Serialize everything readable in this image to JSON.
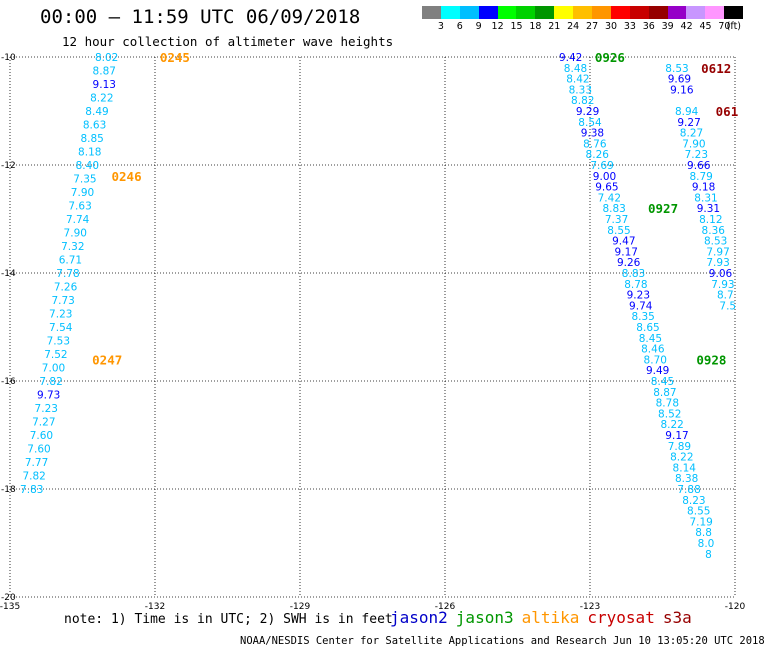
{
  "title": "00:00 – 11:59 UTC 06/09/2018",
  "subtitle": "12 hour collection of altimeter wave heights",
  "colorbar": {
    "colors": [
      "#808080",
      "#00ffff",
      "#00bfff",
      "#0000ff",
      "#00ff00",
      "#00d200",
      "#009600",
      "#ffff00",
      "#ffbf00",
      "#ff9600",
      "#ff0000",
      "#c80000",
      "#960000",
      "#9600c8",
      "#c896ff",
      "#ff96ff",
      "#000000"
    ],
    "labels": [
      "3",
      "6",
      "9",
      "12",
      "15",
      "18",
      "21",
      "24",
      "27",
      "30",
      "33",
      "36",
      "39",
      "42",
      "45",
      "70",
      "(ft)"
    ]
  },
  "note": "note: 1) Time is in UTC; 2) SWH is in feet",
  "satellites": [
    {
      "name": "jason2",
      "color": "#0000c8"
    },
    {
      "name": "jason3",
      "color": "#009600"
    },
    {
      "name": "altika",
      "color": "#ff9600"
    },
    {
      "name": "cryosat",
      "color": "#c80000"
    },
    {
      "name": "s3a",
      "color": "#960000"
    }
  ],
  "credit": "NOAA/NESDIS Center for Satellite Applications and Research   Jun 10 13:05:20 UTC 2018",
  "chart_data": {
    "type": "scatter",
    "xlabel": "",
    "ylabel": "",
    "xlim": [
      -135,
      -120
    ],
    "ylim": [
      -20,
      -10
    ],
    "xticks": [
      "-135",
      "-132",
      "-129",
      "-126",
      "-123",
      "-120"
    ],
    "yticks": [
      "-10",
      "-12",
      "-14",
      "-16",
      "-18",
      "-20"
    ],
    "grid": true,
    "time_labels": [
      {
        "text": "0245",
        "lon": -131.9,
        "lat": -10.0,
        "color": "#ff9600"
      },
      {
        "text": "0246",
        "lon": -132.9,
        "lat": -12.2,
        "color": "#ff9600"
      },
      {
        "text": "0247",
        "lon": -133.3,
        "lat": -15.6,
        "color": "#ff9600"
      },
      {
        "text": "0926",
        "lon": -122.9,
        "lat": -10.0,
        "color": "#009600"
      },
      {
        "text": "0927",
        "lon": -121.8,
        "lat": -12.8,
        "color": "#009600"
      },
      {
        "text": "0928",
        "lon": -120.8,
        "lat": -15.6,
        "color": "#009600"
      },
      {
        "text": "0612",
        "lon": -120.7,
        "lat": -10.2,
        "color": "#960000"
      },
      {
        "text": "061",
        "lon": -120.4,
        "lat": -11.0,
        "color": "#960000"
      }
    ],
    "series": [
      {
        "name": "altika",
        "points": [
          {
            "lon": -133.0,
            "lat": -10.0,
            "swh": "8.02",
            "color": "#00bfff"
          },
          {
            "lon": -133.05,
            "lat": -10.25,
            "swh": "8.87",
            "color": "#00bfff"
          },
          {
            "lon": -133.05,
            "lat": -10.5,
            "swh": "9.13",
            "color": "#0000ff"
          },
          {
            "lon": -133.1,
            "lat": -10.75,
            "swh": "8.22",
            "color": "#00bfff"
          },
          {
            "lon": -133.2,
            "lat": -11.0,
            "swh": "8.49",
            "color": "#00bfff"
          },
          {
            "lon": -133.25,
            "lat": -11.25,
            "swh": "8.63",
            "color": "#00bfff"
          },
          {
            "lon": -133.3,
            "lat": -11.5,
            "swh": "8.85",
            "color": "#00bfff"
          },
          {
            "lon": -133.35,
            "lat": -11.75,
            "swh": "8.18",
            "color": "#00bfff"
          },
          {
            "lon": -133.4,
            "lat": -12.0,
            "swh": "8.40",
            "color": "#00bfff"
          },
          {
            "lon": -133.45,
            "lat": -12.25,
            "swh": "7.35",
            "color": "#00bfff"
          },
          {
            "lon": -133.5,
            "lat": -12.5,
            "swh": "7.90",
            "color": "#00bfff"
          },
          {
            "lon": -133.55,
            "lat": -12.75,
            "swh": "7.63",
            "color": "#00bfff"
          },
          {
            "lon": -133.6,
            "lat": -13.0,
            "swh": "7.74",
            "color": "#00bfff"
          },
          {
            "lon": -133.65,
            "lat": -13.25,
            "swh": "7.90",
            "color": "#00bfff"
          },
          {
            "lon": -133.7,
            "lat": -13.5,
            "swh": "7.32",
            "color": "#00bfff"
          },
          {
            "lon": -133.75,
            "lat": -13.75,
            "swh": "6.71",
            "color": "#00bfff"
          },
          {
            "lon": -133.8,
            "lat": -14.0,
            "swh": "7.78",
            "color": "#00bfff"
          },
          {
            "lon": -133.85,
            "lat": -14.25,
            "swh": "7.26",
            "color": "#00bfff"
          },
          {
            "lon": -133.9,
            "lat": -14.5,
            "swh": "7.73",
            "color": "#00bfff"
          },
          {
            "lon": -133.95,
            "lat": -14.75,
            "swh": "7.23",
            "color": "#00bfff"
          },
          {
            "lon": -133.95,
            "lat": -15.0,
            "swh": "7.54",
            "color": "#00bfff"
          },
          {
            "lon": -134.0,
            "lat": -15.25,
            "swh": "7.53",
            "color": "#00bfff"
          },
          {
            "lon": -134.05,
            "lat": -15.5,
            "swh": "7.52",
            "color": "#00bfff"
          },
          {
            "lon": -134.1,
            "lat": -15.75,
            "swh": "7.00",
            "color": "#00bfff"
          },
          {
            "lon": -134.15,
            "lat": -16.0,
            "swh": "7.82",
            "color": "#00bfff"
          },
          {
            "lon": -134.2,
            "lat": -16.25,
            "swh": "9.73",
            "color": "#0000ff"
          },
          {
            "lon": -134.25,
            "lat": -16.5,
            "swh": "7.23",
            "color": "#00bfff"
          },
          {
            "lon": -134.3,
            "lat": -16.75,
            "swh": "7.27",
            "color": "#00bfff"
          },
          {
            "lon": -134.35,
            "lat": -17.0,
            "swh": "7.60",
            "color": "#00bfff"
          },
          {
            "lon": -134.4,
            "lat": -17.25,
            "swh": "7.60",
            "color": "#00bfff"
          },
          {
            "lon": -134.45,
            "lat": -17.5,
            "swh": "7.77",
            "color": "#00bfff"
          },
          {
            "lon": -134.5,
            "lat": -17.75,
            "swh": "7.82",
            "color": "#00bfff"
          },
          {
            "lon": -134.55,
            "lat": -18.0,
            "swh": "7.83",
            "color": "#00bfff"
          }
        ]
      },
      {
        "name": "jason3",
        "points": [
          {
            "lon": -123.4,
            "lat": -10.0,
            "swh": "9.42",
            "color": "#0000ff"
          },
          {
            "lon": -123.3,
            "lat": -10.2,
            "swh": "8.48",
            "color": "#00bfff"
          },
          {
            "lon": -123.25,
            "lat": -10.4,
            "swh": "8.42",
            "color": "#00bfff"
          },
          {
            "lon": -123.2,
            "lat": -10.6,
            "swh": "8.33",
            "color": "#00bfff"
          },
          {
            "lon": -123.15,
            "lat": -10.8,
            "swh": "8.82",
            "color": "#00bfff"
          },
          {
            "lon": -123.05,
            "lat": -11.0,
            "swh": "9.29",
            "color": "#0000ff"
          },
          {
            "lon": -123.0,
            "lat": -11.2,
            "swh": "8.54",
            "color": "#00bfff"
          },
          {
            "lon": -122.95,
            "lat": -11.4,
            "swh": "9.38",
            "color": "#0000ff"
          },
          {
            "lon": -122.9,
            "lat": -11.6,
            "swh": "8.76",
            "color": "#00bfff"
          },
          {
            "lon": -122.85,
            "lat": -11.8,
            "swh": "8.26",
            "color": "#00bfff"
          },
          {
            "lon": -122.75,
            "lat": -12.0,
            "swh": "7.69",
            "color": "#00bfff"
          },
          {
            "lon": -122.7,
            "lat": -12.2,
            "swh": "9.00",
            "color": "#0000ff"
          },
          {
            "lon": -122.65,
            "lat": -12.4,
            "swh": "9.65",
            "color": "#0000ff"
          },
          {
            "lon": -122.6,
            "lat": -12.6,
            "swh": "7.42",
            "color": "#00bfff"
          },
          {
            "lon": -122.5,
            "lat": -12.8,
            "swh": "8.83",
            "color": "#00bfff"
          },
          {
            "lon": -122.45,
            "lat": -13.0,
            "swh": "7.37",
            "color": "#00bfff"
          },
          {
            "lon": -122.4,
            "lat": -13.2,
            "swh": "8.55",
            "color": "#00bfff"
          },
          {
            "lon": -122.3,
            "lat": -13.4,
            "swh": "9.47",
            "color": "#0000ff"
          },
          {
            "lon": -122.25,
            "lat": -13.6,
            "swh": "9.17",
            "color": "#0000ff"
          },
          {
            "lon": -122.2,
            "lat": -13.8,
            "swh": "9.26",
            "color": "#0000ff"
          },
          {
            "lon": -122.1,
            "lat": -14.0,
            "swh": "8.83",
            "color": "#00bfff"
          },
          {
            "lon": -122.05,
            "lat": -14.2,
            "swh": "8.78",
            "color": "#00bfff"
          },
          {
            "lon": -122.0,
            "lat": -14.4,
            "swh": "9.23",
            "color": "#0000ff"
          },
          {
            "lon": -121.95,
            "lat": -14.6,
            "swh": "9.74",
            "color": "#0000ff"
          },
          {
            "lon": -121.9,
            "lat": -14.8,
            "swh": "8.35",
            "color": "#00bfff"
          },
          {
            "lon": -121.8,
            "lat": -15.0,
            "swh": "8.65",
            "color": "#00bfff"
          },
          {
            "lon": -121.75,
            "lat": -15.2,
            "swh": "8.45",
            "color": "#00bfff"
          },
          {
            "lon": -121.7,
            "lat": -15.4,
            "swh": "8.46",
            "color": "#00bfff"
          },
          {
            "lon": -121.65,
            "lat": -15.6,
            "swh": "8.70",
            "color": "#00bfff"
          },
          {
            "lon": -121.6,
            "lat": -15.8,
            "swh": "9.49",
            "color": "#0000ff"
          },
          {
            "lon": -121.5,
            "lat": -16.0,
            "swh": "8.45",
            "color": "#00bfff"
          },
          {
            "lon": -121.45,
            "lat": -16.2,
            "swh": "8.87",
            "color": "#00bfff"
          },
          {
            "lon": -121.4,
            "lat": -16.4,
            "swh": "8.78",
            "color": "#00bfff"
          },
          {
            "lon": -121.35,
            "lat": -16.6,
            "swh": "8.52",
            "color": "#00bfff"
          },
          {
            "lon": -121.3,
            "lat": -16.8,
            "swh": "8.22",
            "color": "#00bfff"
          },
          {
            "lon": -121.2,
            "lat": -17.0,
            "swh": "9.17",
            "color": "#0000ff"
          },
          {
            "lon": -121.15,
            "lat": -17.2,
            "swh": "7.89",
            "color": "#00bfff"
          },
          {
            "lon": -121.1,
            "lat": -17.4,
            "swh": "8.22",
            "color": "#00bfff"
          },
          {
            "lon": -121.05,
            "lat": -17.6,
            "swh": "8.14",
            "color": "#00bfff"
          },
          {
            "lon": -121.0,
            "lat": -17.8,
            "swh": "8.38",
            "color": "#00bfff"
          },
          {
            "lon": -120.95,
            "lat": -18.0,
            "swh": "7.88",
            "color": "#00bfff"
          },
          {
            "lon": -120.85,
            "lat": -18.2,
            "swh": "8.23",
            "color": "#00bfff"
          },
          {
            "lon": -120.75,
            "lat": -18.4,
            "swh": "8.55",
            "color": "#00bfff"
          },
          {
            "lon": -120.7,
            "lat": -18.6,
            "swh": "7.19",
            "color": "#00bfff"
          },
          {
            "lon": -120.65,
            "lat": -18.8,
            "swh": "8.8",
            "color": "#00bfff"
          },
          {
            "lon": -120.6,
            "lat": -19.0,
            "swh": "8.0",
            "color": "#00bfff"
          },
          {
            "lon": -120.55,
            "lat": -19.2,
            "swh": "8",
            "color": "#00bfff"
          }
        ]
      },
      {
        "name": "s3a",
        "points": [
          {
            "lon": -121.2,
            "lat": -10.2,
            "swh": "8.53",
            "color": "#00bfff"
          },
          {
            "lon": -121.15,
            "lat": -10.4,
            "swh": "9.69",
            "color": "#0000ff"
          },
          {
            "lon": -121.1,
            "lat": -10.6,
            "swh": "9.16",
            "color": "#0000ff"
          },
          {
            "lon": -121.0,
            "lat": -11.0,
            "swh": "8.94",
            "color": "#00bfff"
          },
          {
            "lon": -120.95,
            "lat": -11.2,
            "swh": "9.27",
            "color": "#0000ff"
          },
          {
            "lon": -120.9,
            "lat": -11.4,
            "swh": "8.27",
            "color": "#00bfff"
          },
          {
            "lon": -120.85,
            "lat": -11.6,
            "swh": "7.90",
            "color": "#00bfff"
          },
          {
            "lon": -120.8,
            "lat": -11.8,
            "swh": "7.23",
            "color": "#00bfff"
          },
          {
            "lon": -120.75,
            "lat": -12.0,
            "swh": "9.66",
            "color": "#0000ff"
          },
          {
            "lon": -120.7,
            "lat": -12.2,
            "swh": "8.79",
            "color": "#00bfff"
          },
          {
            "lon": -120.65,
            "lat": -12.4,
            "swh": "9.18",
            "color": "#0000ff"
          },
          {
            "lon": -120.6,
            "lat": -12.6,
            "swh": "8.31",
            "color": "#00bfff"
          },
          {
            "lon": -120.55,
            "lat": -12.8,
            "swh": "9.31",
            "color": "#0000ff"
          },
          {
            "lon": -120.5,
            "lat": -13.0,
            "swh": "8.12",
            "color": "#00bfff"
          },
          {
            "lon": -120.45,
            "lat": -13.2,
            "swh": "8.36",
            "color": "#00bfff"
          },
          {
            "lon": -120.4,
            "lat": -13.4,
            "swh": "8.53",
            "color": "#00bfff"
          },
          {
            "lon": -120.35,
            "lat": -13.6,
            "swh": "7.97",
            "color": "#00bfff"
          },
          {
            "lon": -120.35,
            "lat": -13.8,
            "swh": "7.93",
            "color": "#00bfff"
          },
          {
            "lon": -120.3,
            "lat": -14.0,
            "swh": "9.06",
            "color": "#0000ff"
          },
          {
            "lon": -120.25,
            "lat": -14.2,
            "swh": "7.93",
            "color": "#00bfff"
          },
          {
            "lon": -120.2,
            "lat": -14.4,
            "swh": "8.7",
            "color": "#00bfff"
          },
          {
            "lon": -120.15,
            "lat": -14.6,
            "swh": "7.5",
            "color": "#00bfff"
          }
        ]
      }
    ]
  }
}
